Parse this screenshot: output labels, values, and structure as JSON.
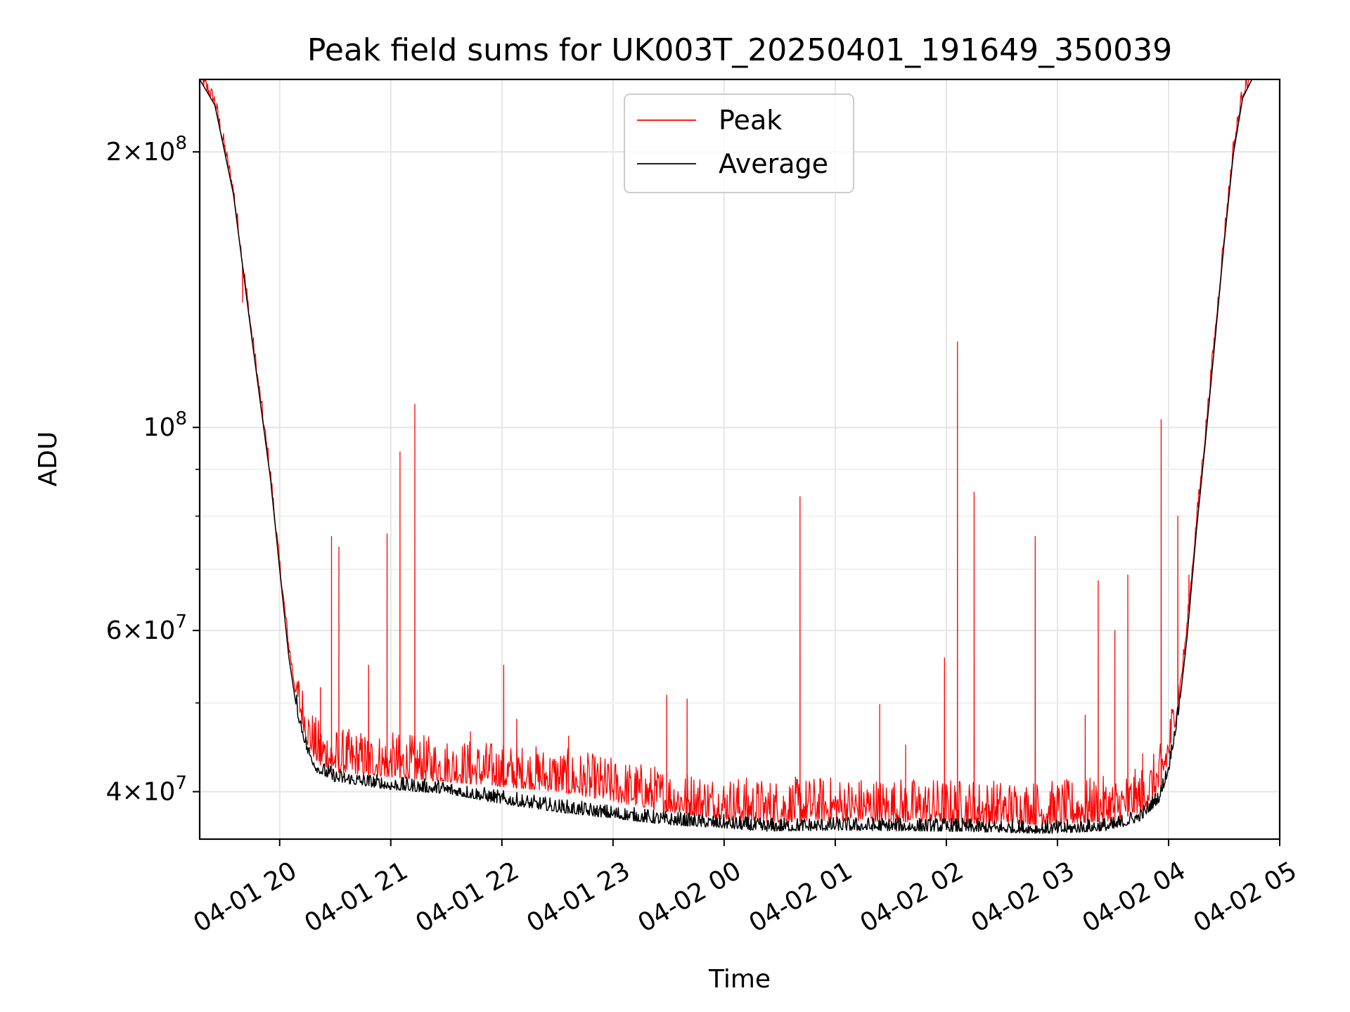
{
  "chart_data": {
    "type": "line",
    "title": "Peak field sums for UK003T_20250401_191649_350039",
    "xlabel": "Time",
    "ylabel": "ADU",
    "yscale": "log",
    "ylim": [
      35500000,
      240000000
    ],
    "xlim": [
      "2025-04-01 19:16:49",
      "2025-04-02 05:00:00"
    ],
    "grid": true,
    "legend_position": "top-center",
    "x_ticks": [
      "04-01 20",
      "04-01 21",
      "04-01 22",
      "04-01 23",
      "04-02 00",
      "04-02 01",
      "04-02 02",
      "04-02 03",
      "04-02 04",
      "04-02 05"
    ],
    "y_major_ticks": [
      {
        "value": 40000000,
        "base": "4",
        "exp": "7"
      },
      {
        "value": 60000000,
        "base": "6",
        "exp": "7"
      },
      {
        "value": 100000000,
        "base": "",
        "exp": "8"
      },
      {
        "value": 200000000,
        "base": "2",
        "exp": "8"
      }
    ],
    "y_minor_ticks": [
      50000000,
      70000000,
      80000000,
      90000000
    ],
    "series": [
      {
        "name": "Peak",
        "color": "#ff0000",
        "x": [
          "2025-04-01 19:16:49",
          "2025-04-01 19:25",
          "2025-04-01 19:35",
          "2025-04-01 19:45",
          "2025-04-01 19:55",
          "2025-04-01 20:00",
          "2025-04-01 20:05",
          "2025-04-01 20:10",
          "2025-04-01 20:15",
          "2025-04-01 20:20",
          "2025-04-01 20:30",
          "2025-04-01 21:00",
          "2025-04-01 21:30",
          "2025-04-01 22:00",
          "2025-04-01 22:30",
          "2025-04-01 23:00",
          "2025-04-01 23:30",
          "2025-04-02 00:00",
          "2025-04-02 00:20",
          "2025-04-02 01:00",
          "2025-04-02 02:00",
          "2025-04-02 03:00",
          "2025-04-02 03:30",
          "2025-04-02 03:45",
          "2025-04-02 03:55",
          "2025-04-02 04:00",
          "2025-04-02 04:05",
          "2025-04-02 04:10",
          "2025-04-02 04:15",
          "2025-04-02 04:20",
          "2025-04-02 04:25",
          "2025-04-02 04:30",
          "2025-04-02 04:35",
          "2025-04-02 04:40",
          "2025-04-02 04:45",
          "2025-04-02 04:50"
        ],
        "y": [
          240000000,
          225000000,
          180000000,
          125000000,
          88000000,
          70000000,
          57000000,
          49000000,
          45000000,
          43000000,
          42000000,
          41500000,
          41000000,
          40500000,
          40000000,
          39000000,
          38000000,
          37300000,
          37000000,
          37200000,
          37000000,
          36800000,
          37200000,
          38000000,
          40000000,
          43000000,
          49000000,
          60000000,
          78000000,
          98000000,
          125000000,
          160000000,
          200000000,
          230000000,
          240000000,
          240000000
        ],
        "spikes": [
          {
            "x": "2025-04-01 19:40",
            "y": 137000000
          },
          {
            "x": "2025-04-01 20:22",
            "y": 52000000
          },
          {
            "x": "2025-04-01 20:28",
            "y": 76000000
          },
          {
            "x": "2025-04-01 20:32",
            "y": 74000000
          },
          {
            "x": "2025-04-01 20:48",
            "y": 55000000
          },
          {
            "x": "2025-04-01 20:58",
            "y": 76500000
          },
          {
            "x": "2025-04-01 21:05",
            "y": 94000000
          },
          {
            "x": "2025-04-01 21:13",
            "y": 106000000
          },
          {
            "x": "2025-04-01 21:43",
            "y": 46500000
          },
          {
            "x": "2025-04-01 22:01",
            "y": 55000000
          },
          {
            "x": "2025-04-01 22:08",
            "y": 48000000
          },
          {
            "x": "2025-04-01 22:36",
            "y": 46000000
          },
          {
            "x": "2025-04-01 23:29",
            "y": 51000000
          },
          {
            "x": "2025-04-01 23:40",
            "y": 50500000
          },
          {
            "x": "2025-04-02 00:41",
            "y": 84000000
          },
          {
            "x": "2025-04-02 01:24",
            "y": 49800000
          },
          {
            "x": "2025-04-02 01:38",
            "y": 45000000
          },
          {
            "x": "2025-04-02 01:59",
            "y": 56000000
          },
          {
            "x": "2025-04-02 02:06",
            "y": 124000000
          },
          {
            "x": "2025-04-02 02:15",
            "y": 85000000
          },
          {
            "x": "2025-04-02 02:48",
            "y": 76000000
          },
          {
            "x": "2025-04-02 03:15",
            "y": 48500000
          },
          {
            "x": "2025-04-02 03:22",
            "y": 68000000
          },
          {
            "x": "2025-04-02 03:31",
            "y": 60000000
          },
          {
            "x": "2025-04-02 03:38",
            "y": 69000000
          },
          {
            "x": "2025-04-02 03:46",
            "y": 44000000
          },
          {
            "x": "2025-04-02 03:56",
            "y": 102000000
          },
          {
            "x": "2025-04-02 04:05",
            "y": 80000000
          },
          {
            "x": "2025-04-02 04:11",
            "y": 69000000
          }
        ]
      },
      {
        "name": "Average",
        "color": "#000000",
        "x": [
          "2025-04-01 19:16:49",
          "2025-04-01 19:25",
          "2025-04-01 19:35",
          "2025-04-01 19:45",
          "2025-04-01 19:55",
          "2025-04-01 20:00",
          "2025-04-01 20:05",
          "2025-04-01 20:10",
          "2025-04-01 20:15",
          "2025-04-01 20:20",
          "2025-04-01 20:30",
          "2025-04-01 21:00",
          "2025-04-01 21:30",
          "2025-04-01 22:00",
          "2025-04-01 22:30",
          "2025-04-01 23:00",
          "2025-04-01 23:30",
          "2025-04-02 00:00",
          "2025-04-02 00:20",
          "2025-04-02 01:00",
          "2025-04-02 02:00",
          "2025-04-02 03:00",
          "2025-04-02 03:30",
          "2025-04-02 03:45",
          "2025-04-02 03:55",
          "2025-04-02 04:00",
          "2025-04-02 04:05",
          "2025-04-02 04:10",
          "2025-04-02 04:15",
          "2025-04-02 04:20",
          "2025-04-02 04:25",
          "2025-04-02 04:30",
          "2025-04-02 04:35",
          "2025-04-02 04:40",
          "2025-04-02 04:45",
          "2025-04-02 04:50"
        ],
        "y": [
          240000000,
          225000000,
          180000000,
          125000000,
          88000000,
          70000000,
          56000000,
          48000000,
          44000000,
          42000000,
          41000000,
          40200000,
          39800000,
          38800000,
          38000000,
          37400000,
          36800000,
          36500000,
          36200000,
          36300000,
          36200000,
          36000000,
          36300000,
          37200000,
          39000000,
          42000000,
          48000000,
          59000000,
          77000000,
          97000000,
          124000000,
          159000000,
          199000000,
          229000000,
          240000000,
          240000000
        ]
      }
    ]
  }
}
